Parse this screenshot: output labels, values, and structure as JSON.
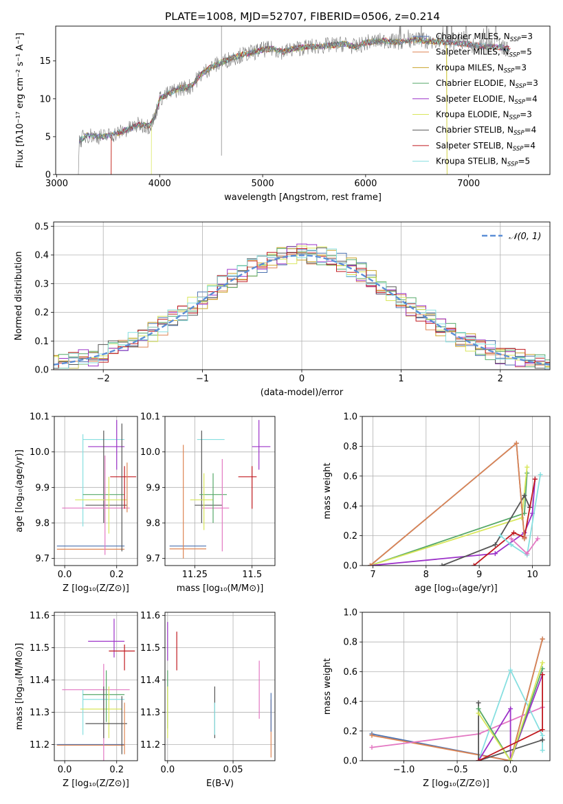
{
  "title": "PLATE=1008, MJD=52707, FIBERID=0506, z=0.214",
  "colors": {
    "chabrier_miles": "#4c72b0",
    "salpeter_miles": "#dd8452",
    "kroupa_miles": "#c9a227",
    "chabrier_elodie": "#55a868",
    "salpeter_elodie": "#9b30c8",
    "kroupa_elodie": "#d8e65a",
    "chabrier_stelib": "#555555",
    "salpeter_stelib": "#c0191f",
    "kroupa_stelib": "#86dfe0",
    "pink": "#e377c2",
    "gauss": "#5b8ed6"
  },
  "chart_data": [
    {
      "id": "spectrum",
      "type": "line",
      "xlabel": "wavelength [Angstrom, rest frame]",
      "ylabel": "Flux [fλ10⁻¹⁷ erg cm⁻² s⁻¹ A⁻¹]",
      "xlim": [
        2990,
        7790
      ],
      "ylim": [
        0,
        19.6
      ],
      "xticks": [
        3000,
        4000,
        5000,
        6000,
        7000
      ],
      "yticks": [
        0,
        5,
        10,
        15
      ],
      "continuum": [
        [
          3200,
          0
        ],
        [
          3210,
          0
        ],
        [
          3220,
          4.5
        ],
        [
          3300,
          5.2
        ],
        [
          3450,
          5.0
        ],
        [
          3550,
          5.3
        ],
        [
          3700,
          6.0
        ],
        [
          3800,
          6.6
        ],
        [
          3900,
          6.4
        ],
        [
          3950,
          7.5
        ],
        [
          4000,
          10.0
        ],
        [
          4100,
          10.8
        ],
        [
          4200,
          11.4
        ],
        [
          4300,
          11.6
        ],
        [
          4400,
          13.2
        ],
        [
          4500,
          14.2
        ],
        [
          4600,
          14.8
        ],
        [
          4700,
          15.4
        ],
        [
          4800,
          15.8
        ],
        [
          4900,
          16.1
        ],
        [
          5000,
          16.5
        ],
        [
          5100,
          16.6
        ],
        [
          5200,
          16.2
        ],
        [
          5300,
          16.6
        ],
        [
          5400,
          16.8
        ],
        [
          5500,
          16.9
        ],
        [
          5600,
          17.0
        ],
        [
          5700,
          17.1
        ],
        [
          5800,
          17.3
        ],
        [
          5900,
          16.8
        ],
        [
          6000,
          17.4
        ],
        [
          6100,
          17.6
        ],
        [
          6200,
          17.7
        ],
        [
          6300,
          17.5
        ],
        [
          6400,
          17.6
        ],
        [
          6500,
          17.8
        ],
        [
          6600,
          17.6
        ],
        [
          6700,
          17.5
        ],
        [
          6800,
          17.5
        ],
        [
          6900,
          17.3
        ],
        [
          7000,
          17.2
        ],
        [
          7100,
          17.0
        ],
        [
          7200,
          16.9
        ],
        [
          7300,
          16.8
        ],
        [
          7400,
          16.6
        ]
      ],
      "legend": [
        {
          "key": "chabrier_miles",
          "label": "Chabrier MILES, N",
          "nssp": 3
        },
        {
          "key": "salpeter_miles",
          "label": "Salpeter MILES, N",
          "nssp": 5
        },
        {
          "key": "kroupa_miles",
          "label": "Kroupa MILES, N",
          "nssp": 3
        },
        {
          "key": "chabrier_elodie",
          "label": "Chabrier ELODIE, N",
          "nssp": 3
        },
        {
          "key": "salpeter_elodie",
          "label": "Salpeter ELODIE, N",
          "nssp": 4
        },
        {
          "key": "kroupa_elodie",
          "label": "Kroupa ELODIE, N",
          "nssp": 3
        },
        {
          "key": "chabrier_stelib",
          "label": "Chabrier STELIB, N",
          "nssp": 4
        },
        {
          "key": "salpeter_stelib",
          "label": "Salpeter STELIB, N",
          "nssp": 4
        },
        {
          "key": "kroupa_stelib",
          "label": "Kroupa STELIB, N",
          "nssp": 5
        }
      ],
      "legend_subscript": "SSP",
      "legend_placement": "upper right"
    },
    {
      "id": "residuals",
      "type": "histogram",
      "xlabel": "(data-model)/error",
      "ylabel": "Normed distribution",
      "xlim": [
        -2.5,
        2.5
      ],
      "ylim": [
        0,
        0.515
      ],
      "xticks": [
        -2,
        -1,
        0,
        1,
        2
      ],
      "yticks": [
        0.0,
        0.1,
        0.2,
        0.3,
        0.4,
        0.5
      ],
      "grid": true,
      "gauss_label": "𝒩(0, 1)",
      "legend_placement": "upper right"
    },
    {
      "id": "age_vs_Z",
      "type": "errorbar",
      "xlabel": "Z [log₁₀(Z/Z⊙)]",
      "ylabel": "age  [log₁₀(age/yr)]",
      "xlim": [
        -0.04,
        0.28
      ],
      "ylim": [
        9.68,
        10.1
      ],
      "xticks": [
        0.0,
        0.2
      ],
      "yticks": [
        9.7,
        9.8,
        9.9,
        10.0,
        10.1
      ],
      "grid": true
    },
    {
      "id": "age_vs_mass",
      "type": "errorbar",
      "xlabel": "mass [log₁₀(M/M⊙)]",
      "xlim": [
        11.12,
        11.6
      ],
      "ylim": [
        9.68,
        10.1
      ],
      "xticks": [
        11.25,
        11.5
      ],
      "yticks": [
        9.7,
        9.8,
        9.9,
        10.0,
        10.1
      ],
      "grid": true
    },
    {
      "id": "massweight_vs_age",
      "type": "line",
      "xlabel": "age  [log₁₀(age/yr)]",
      "ylabel": "mass weight",
      "xlim": [
        6.8,
        10.33
      ],
      "ylim": [
        0,
        1.0
      ],
      "xticks": [
        7,
        8,
        9,
        10
      ],
      "yticks": [
        0.0,
        0.2,
        0.4,
        0.6,
        0.8,
        1.0
      ],
      "grid": true
    },
    {
      "id": "mass_vs_Z",
      "type": "errorbar",
      "xlabel": "Z [log₁₀(Z/Z⊙)]",
      "ylabel": "mass [log₁₀(M/M⊙)]",
      "xlim": [
        -0.04,
        0.28
      ],
      "ylim": [
        11.15,
        11.61
      ],
      "xticks": [
        0.0,
        0.2
      ],
      "yticks": [
        11.2,
        11.3,
        11.4,
        11.5,
        11.6
      ],
      "grid": true
    },
    {
      "id": "mass_vs_ebv",
      "type": "errorbar",
      "xlabel": "E(B-V)",
      "xlim": [
        -0.002,
        0.082
      ],
      "ylim": [
        11.15,
        11.61
      ],
      "xticks": [
        0.0,
        0.05
      ],
      "yticks": [
        11.2,
        11.3,
        11.4,
        11.5,
        11.6
      ],
      "grid": true
    },
    {
      "id": "massweight_vs_Z",
      "type": "line",
      "xlabel": "Z [log₁₀(Z/Z⊙)]",
      "ylabel": "mass weight",
      "xlim": [
        -1.39,
        0.37
      ],
      "ylim": [
        0,
        1.0
      ],
      "xticks": [
        -1.0,
        -0.5,
        0.0
      ],
      "yticks": [
        0.0,
        0.2,
        0.4,
        0.6,
        0.8,
        1.0
      ],
      "grid": true
    }
  ]
}
